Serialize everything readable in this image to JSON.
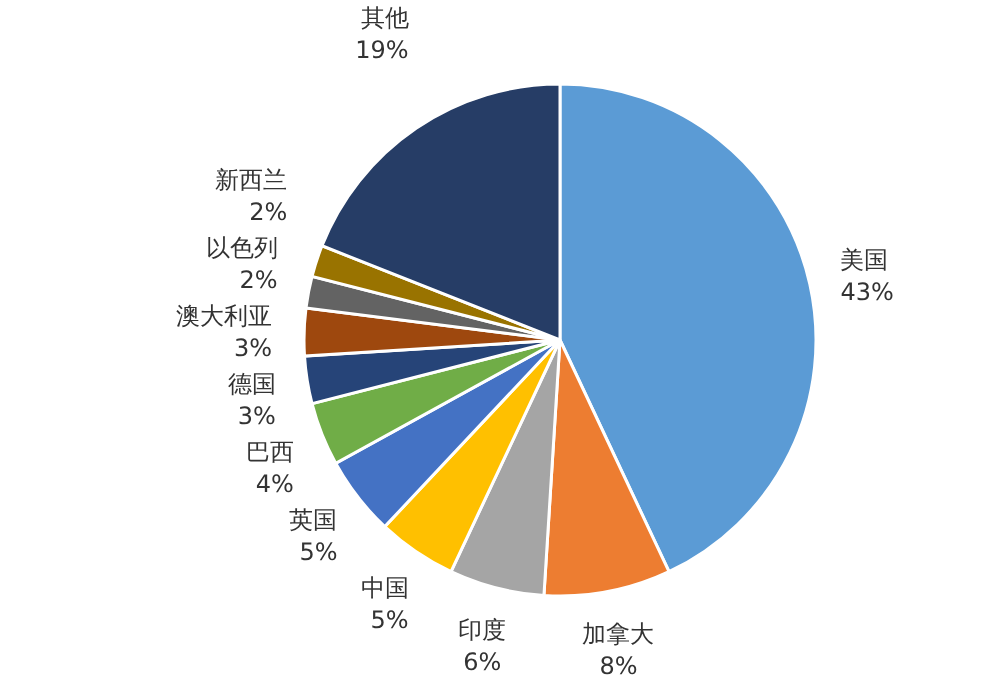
{
  "chart_data": {
    "type": "pie",
    "categories": [
      "美国",
      "加拿大",
      "印度",
      "中国",
      "英国",
      "巴西",
      "德国",
      "澳大利亚",
      "以色列",
      "新西兰",
      "其他"
    ],
    "values": [
      43,
      8,
      6,
      5,
      5,
      4,
      3,
      3,
      2,
      2,
      19
    ],
    "value_labels": [
      "43%",
      "8%",
      "6%",
      "5%",
      "5%",
      "4%",
      "3%",
      "3%",
      "2%",
      "2%",
      "19%"
    ],
    "colors": [
      "#5b9bd5",
      "#ed7d31",
      "#a5a5a5",
      "#ffc000",
      "#4472c4",
      "#70ad47",
      "#264478",
      "#9e480e",
      "#636363",
      "#997300",
      "#263d66"
    ]
  }
}
